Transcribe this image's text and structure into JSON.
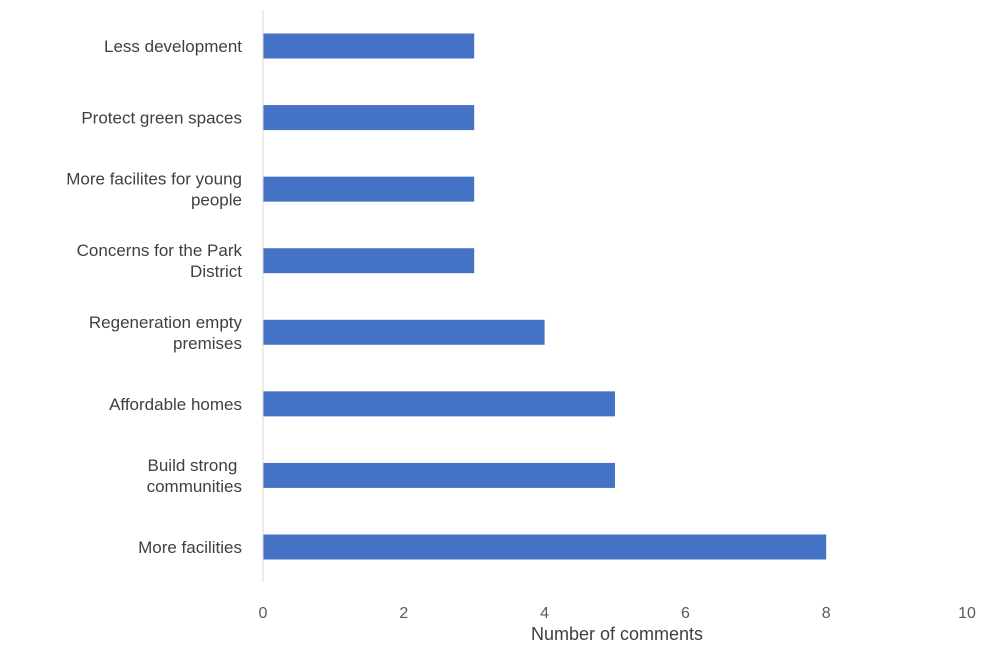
{
  "chart_data": {
    "type": "bar",
    "orientation": "horizontal",
    "categories": [
      "Less development",
      "Protect green spaces",
      "More facilites for young people",
      "Concerns for the Park District",
      "Regeneration empty premises",
      "Affordable homes",
      "Build strong  communities",
      "More facilities"
    ],
    "category_lines": [
      [
        "Less development"
      ],
      [
        "Protect green spaces"
      ],
      [
        "More facilites for young",
        "people"
      ],
      [
        "Concerns for the Park",
        "District"
      ],
      [
        "Regeneration empty",
        "premises"
      ],
      [
        "Affordable homes"
      ],
      [
        "Build strong ",
        "communities"
      ],
      [
        "More facilities"
      ]
    ],
    "values": [
      3,
      3,
      3,
      3,
      4,
      5,
      5,
      8
    ],
    "title": "",
    "xlabel": "Number of comments",
    "ylabel": "",
    "xlim": [
      0,
      10
    ],
    "xticks": [
      "0",
      "2",
      "4",
      "6",
      "8",
      "10"
    ],
    "grid": false,
    "legend": "none",
    "colors": {
      "bar": "#4472C4",
      "axis": "#D9D9D9"
    }
  }
}
